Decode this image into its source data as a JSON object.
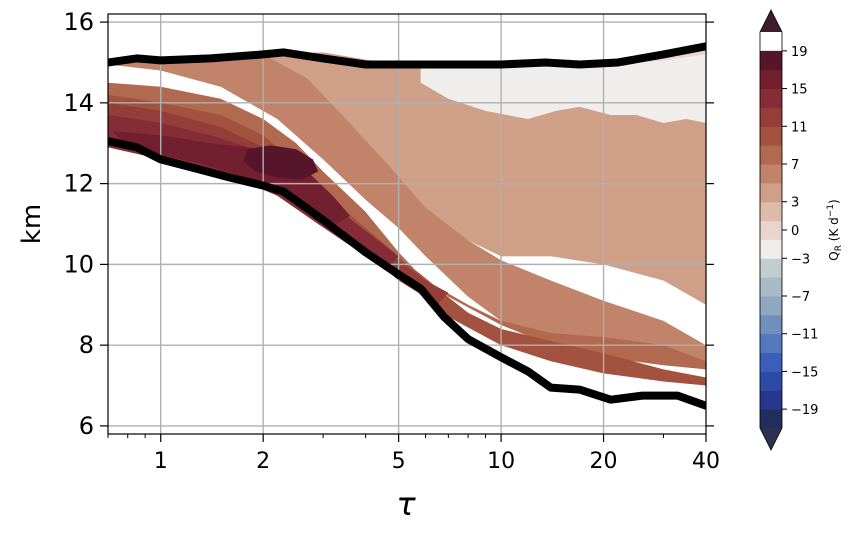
{
  "chart_data": {
    "type": "heatmap",
    "xlabel": "τ",
    "ylabel": "km",
    "xscale": "log",
    "xlim": [
      0.7,
      40
    ],
    "ylim": [
      5.8,
      16.2
    ],
    "xticks": [
      1,
      2,
      5,
      10,
      20,
      40
    ],
    "xtick_labels": [
      "1",
      "2",
      "5",
      "10",
      "20",
      "40"
    ],
    "yticks": [
      6,
      8,
      10,
      12,
      14,
      16
    ],
    "ytick_labels": [
      "6",
      "8",
      "10",
      "12",
      "14",
      "16"
    ],
    "grid": true,
    "colorbar": {
      "label": "Q_R (K d^-1)",
      "tick_values": [
        19,
        15,
        11,
        7,
        3,
        0,
        -3,
        -7,
        -11,
        -15,
        -19
      ],
      "tick_labels": [
        "19",
        "15",
        "11",
        "7",
        "3",
        "0",
        "−3",
        "−7",
        "−11",
        "−15",
        "−19"
      ],
      "extend": "both",
      "levels": [
        -21,
        -19,
        -17,
        -15,
        -13,
        -11,
        -9,
        -7,
        -5,
        -3,
        -1,
        1,
        3,
        5,
        7,
        9,
        11,
        13,
        15,
        17,
        19,
        21
      ],
      "colors": [
        "#222d5c",
        "#27378e",
        "#2e4aa8",
        "#3a5fb8",
        "#5378bc",
        "#6f8fbf",
        "#8fa8c2",
        "#a9bbc4",
        "#c2cdcf",
        "#f0eeec",
        "#e9d5cd",
        "#ddbba9",
        "#cf9f88",
        "#c1836a",
        "#b16a50",
        "#a2523f",
        "#943d39",
        "#862c36",
        "#722030",
        "#56152a"
      ],
      "extend_low_color": "#2b3150",
      "extend_high_color": "#3d1c2e"
    },
    "top_boundary": {
      "x": [
        0.7,
        0.85,
        1.0,
        1.4,
        2.0,
        2.3,
        3.0,
        4.0,
        5.0,
        7.0,
        10.0,
        13.5,
        17.0,
        22.0,
        30.0,
        40.0
      ],
      "y": [
        15.0,
        15.1,
        15.05,
        15.1,
        15.2,
        15.25,
        15.1,
        14.95,
        14.95,
        14.95,
        14.95,
        15.0,
        14.95,
        15.0,
        15.2,
        15.4
      ]
    },
    "bottom_boundary": {
      "x": [
        0.7,
        0.85,
        1.0,
        1.3,
        1.6,
        2.0,
        2.3,
        3.0,
        4.0,
        5.0,
        5.8,
        6.8,
        8.0,
        10.0,
        12.0,
        14.0,
        17.0,
        21.0,
        26.0,
        33.0,
        40.0
      ],
      "y": [
        13.05,
        12.9,
        12.6,
        12.35,
        12.15,
        11.95,
        11.8,
        11.1,
        10.3,
        9.75,
        9.4,
        8.7,
        8.15,
        7.7,
        7.35,
        6.95,
        6.9,
        6.65,
        6.75,
        6.75,
        6.5
      ]
    },
    "contours": [
      {
        "value": 0.5,
        "x": [
          0.7,
          0.85,
          1.0,
          1.4,
          2.0,
          2.3,
          3.0,
          4.0,
          5.0,
          7.0,
          10.0,
          13.5,
          17.0,
          22.0,
          30.0,
          40.0,
          40.0,
          30.0,
          20.0,
          14.0,
          10.0,
          7.0,
          5.0,
          3.5,
          2.5
        ],
        "y": [
          15.0,
          15.1,
          15.05,
          15.1,
          15.2,
          15.25,
          15.1,
          14.95,
          14.95,
          14.95,
          14.95,
          15.0,
          14.95,
          15.0,
          15.2,
          15.4,
          11.5,
          11.6,
          11.4,
          11.2,
          11.5,
          12.0,
          13.0,
          14.2,
          15.0
        ]
      },
      {
        "value": 2,
        "x": [
          0.7,
          0.85,
          1.0,
          1.4,
          2.0,
          2.3,
          2.5,
          3.5,
          5.0,
          7.0,
          10.0,
          14.0,
          20.0,
          30.0,
          40.0,
          40.0,
          30.0,
          20.0,
          14.0,
          10.0,
          8.0,
          6.0,
          4.5,
          3.0,
          2.0,
          1.5,
          1.0
        ],
        "y": [
          15.0,
          15.1,
          15.05,
          15.1,
          15.2,
          15.25,
          15.0,
          14.2,
          13.0,
          12.0,
          11.5,
          11.2,
          11.4,
          11.6,
          11.5,
          9.0,
          9.6,
          10.0,
          10.2,
          10.2,
          10.6,
          11.2,
          12.0,
          13.2,
          14.3,
          14.8,
          15.05
        ]
      },
      {
        "value": 4,
        "x": [
          0.7,
          0.85,
          1.0,
          1.5,
          2.0,
          3.0,
          4.5,
          6.0,
          8.0,
          10.0,
          14.0,
          20.0,
          30.0,
          40.0,
          40.0,
          30.0,
          20.0,
          14.0,
          10.0,
          8.0,
          6.0,
          4.5,
          3.5,
          2.5,
          1.7,
          1.2,
          0.85,
          0.7
        ],
        "y": [
          15.0,
          15.1,
          15.05,
          15.1,
          15.2,
          15.25,
          15.0,
          14.95,
          14.95,
          14.95,
          14.95,
          14.95,
          15.0,
          15.0,
          9.0,
          9.6,
          10.0,
          10.2,
          10.2,
          10.6,
          11.2,
          12.0,
          12.8,
          13.8,
          14.6,
          14.85,
          14.9,
          14.95
        ]
      },
      {
        "value": 6,
        "x": [
          0.7,
          0.85,
          1.0,
          1.5,
          2.0,
          2.7,
          3.5,
          4.5,
          6.0,
          8.0,
          10.0,
          14.0,
          20.0,
          30.0,
          40.0,
          40.0,
          30.0,
          20.0,
          14.0,
          10.0,
          8.0,
          6.0,
          5.0,
          4.0,
          3.0,
          2.2,
          1.5,
          1.0,
          0.7
        ],
        "y": [
          15.0,
          15.1,
          15.05,
          15.1,
          15.2,
          14.6,
          13.6,
          12.6,
          11.4,
          10.6,
          10.1,
          9.6,
          9.1,
          8.6,
          8.0,
          7.4,
          7.6,
          7.8,
          8.1,
          8.6,
          9.2,
          10.2,
          10.9,
          11.6,
          12.6,
          13.6,
          14.4,
          14.8,
          14.95
        ]
      },
      {
        "value": 8,
        "x": [
          0.7,
          1.0,
          1.5,
          2.0,
          2.5,
          3.0,
          4.0,
          5.0,
          6.0,
          8.0,
          10.0,
          14.0,
          20.0,
          30.0,
          40.0,
          40.0,
          30.0,
          20.0,
          14.0,
          10.0,
          7.0,
          5.0,
          4.0,
          3.0,
          2.3,
          1.6,
          1.0,
          0.7
        ],
        "y": [
          14.5,
          14.4,
          14.1,
          13.6,
          13.0,
          12.3,
          11.3,
          10.3,
          9.6,
          9.0,
          8.6,
          8.3,
          8.2,
          8.0,
          7.6,
          7.4,
          7.5,
          7.7,
          8.0,
          8.5,
          9.2,
          10.2,
          10.8,
          11.6,
          12.2,
          12.8,
          13.2,
          13.3
        ]
      },
      {
        "value": 10,
        "x": [
          0.7,
          1.0,
          1.5,
          2.0,
          2.5,
          3.2,
          4.0,
          5.0,
          6.5,
          8.0,
          10.0,
          14.0,
          20.0,
          30.0,
          40.0,
          40.0,
          30.0,
          20.0,
          14.0,
          10.0,
          7.0,
          5.0,
          4.0,
          3.0,
          2.3,
          1.6,
          1.0,
          0.7
        ],
        "y": [
          14.2,
          14.0,
          13.7,
          13.2,
          12.5,
          11.6,
          10.9,
          10.2,
          9.4,
          8.8,
          8.4,
          8.1,
          7.8,
          7.4,
          7.2,
          7.0,
          7.1,
          7.3,
          7.6,
          8.0,
          8.7,
          9.9,
          10.5,
          11.3,
          11.9,
          12.4,
          12.8,
          13.0
        ]
      },
      {
        "value": 12,
        "x": [
          0.7,
          1.0,
          1.5,
          2.0,
          2.5,
          3.2,
          4.0,
          5.0,
          6.0,
          7.0,
          6.5,
          5.0,
          4.0,
          3.0,
          2.3,
          1.6,
          1.0,
          0.7
        ],
        "y": [
          14.0,
          13.8,
          13.4,
          12.9,
          12.2,
          11.5,
          10.8,
          10.1,
          9.6,
          9.3,
          9.0,
          9.6,
          10.3,
          11.1,
          11.8,
          12.3,
          12.6,
          12.9
        ]
      },
      {
        "value": 14,
        "x": [
          0.7,
          1.0,
          1.4,
          1.8,
          2.3,
          2.9,
          3.5,
          4.2,
          5.0,
          4.6,
          3.7,
          2.9,
          2.2,
          1.6,
          1.2,
          0.9,
          0.7
        ],
        "y": [
          13.7,
          13.5,
          13.2,
          12.9,
          12.3,
          11.8,
          11.2,
          10.7,
          10.2,
          9.9,
          10.4,
          11.0,
          11.7,
          12.2,
          12.5,
          12.7,
          12.9
        ]
      },
      {
        "value": 16,
        "x": [
          0.72,
          1.0,
          1.4,
          1.8,
          2.3,
          2.7,
          3.2,
          3.6,
          3.3,
          2.7,
          2.2,
          1.7,
          1.3,
          1.0,
          0.8
        ],
        "y": [
          13.3,
          13.2,
          13.0,
          12.9,
          12.8,
          12.3,
          11.7,
          11.2,
          11.0,
          11.3,
          11.8,
          12.2,
          12.5,
          12.7,
          12.9
        ]
      },
      {
        "value": 18,
        "x": [
          1.8,
          2.1,
          2.5,
          2.8,
          2.9,
          2.6,
          2.2,
          1.9,
          1.75
        ],
        "y": [
          12.85,
          12.95,
          12.85,
          12.6,
          12.3,
          12.1,
          12.15,
          12.3,
          12.55
        ]
      },
      {
        "value": -2,
        "x": [
          5.8,
          8.0,
          12.0,
          16.0,
          22.0,
          30.0,
          40.0,
          40.0,
          35.0,
          30.0,
          25.0,
          21.0,
          17.0,
          14.5,
          12.0,
          9.0,
          7.0,
          5.8
        ],
        "y": [
          14.95,
          14.95,
          14.95,
          15.0,
          14.95,
          15.05,
          15.2,
          13.5,
          13.6,
          13.5,
          13.7,
          13.7,
          13.9,
          13.8,
          13.6,
          13.8,
          14.1,
          14.5
        ]
      }
    ]
  }
}
